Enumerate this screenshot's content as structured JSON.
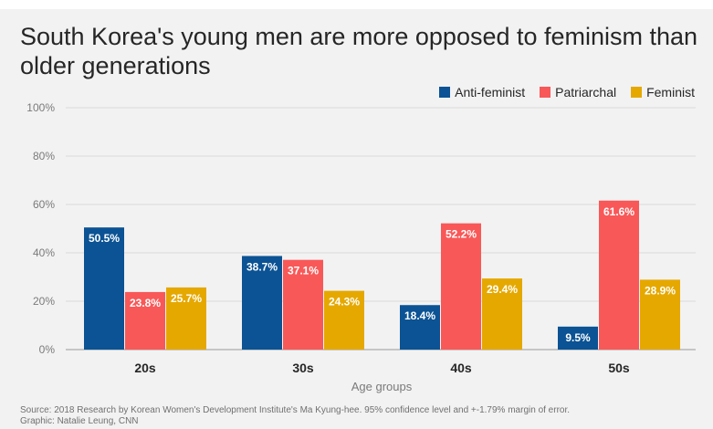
{
  "chart_data": {
    "type": "bar",
    "title": "South Korea's young men are more opposed to feminism than older generations",
    "xlabel": "Age groups",
    "ylabel": "",
    "ylim": [
      0,
      100
    ],
    "yticks": [
      "0%",
      "20%",
      "40%",
      "60%",
      "80%",
      "100%"
    ],
    "grid": true,
    "legend_position": "top-right",
    "categories": [
      "20s",
      "30s",
      "40s",
      "50s"
    ],
    "series": [
      {
        "name": "Anti-feminist",
        "color": "#0b5394",
        "values": [
          50.5,
          38.7,
          18.4,
          9.5
        ],
        "labels": [
          "50.5%",
          "38.7%",
          "18.4%",
          "9.5%"
        ]
      },
      {
        "name": "Patriarchal",
        "color": "#f95858",
        "values": [
          23.8,
          37.1,
          52.2,
          61.6
        ],
        "labels": [
          "23.8%",
          "37.1%",
          "52.2%",
          "61.6%"
        ]
      },
      {
        "name": "Feminist",
        "color": "#e5a800",
        "values": [
          25.7,
          24.3,
          29.4,
          28.9
        ],
        "labels": [
          "25.7%",
          "24.3%",
          "29.4%",
          "28.9%"
        ]
      }
    ]
  },
  "source": {
    "line1": "Source: 2018 Research by Korean Women's Development Institute's Ma Kyung-hee. 95% confidence level and +-1.79% margin of error.",
    "line2": "Graphic: Natalie Leung, CNN"
  }
}
